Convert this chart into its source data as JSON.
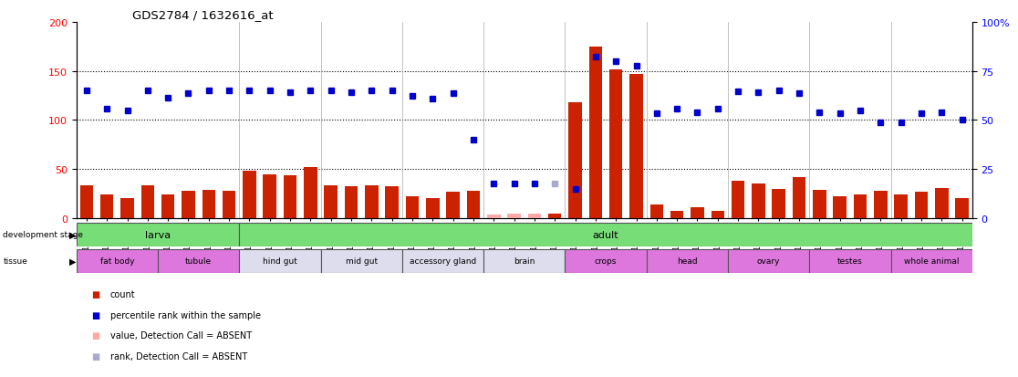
{
  "title": "GDS2784 / 1632616_at",
  "samples": [
    "GSM188092",
    "GSM188093",
    "GSM188094",
    "GSM188095",
    "GSM188100",
    "GSM188101",
    "GSM188102",
    "GSM188103",
    "GSM188072",
    "GSM188073",
    "GSM188074",
    "GSM188075",
    "GSM188076",
    "GSM188077",
    "GSM188078",
    "GSM188079",
    "GSM188080",
    "GSM188081",
    "GSM188082",
    "GSM188083",
    "GSM188084",
    "GSM188085",
    "GSM188086",
    "GSM188087",
    "GSM188088",
    "GSM188089",
    "GSM188090",
    "GSM188091",
    "GSM188096",
    "GSM188097",
    "GSM188098",
    "GSM188099",
    "GSM188104",
    "GSM188105",
    "GSM188106",
    "GSM188107",
    "GSM188108",
    "GSM188109",
    "GSM188110",
    "GSM188111",
    "GSM188112",
    "GSM188113",
    "GSM188114",
    "GSM188115"
  ],
  "counts": [
    34,
    24,
    21,
    34,
    24,
    28,
    29,
    28,
    48,
    45,
    44,
    52,
    34,
    33,
    34,
    33,
    22,
    21,
    27,
    28,
    4,
    5,
    5,
    5,
    118,
    175,
    152,
    147,
    14,
    8,
    11,
    8,
    38,
    35,
    30,
    42,
    29,
    22,
    24,
    28,
    24,
    27,
    31,
    21
  ],
  "counts_absent": [
    false,
    false,
    false,
    false,
    false,
    false,
    false,
    false,
    false,
    false,
    false,
    false,
    false,
    false,
    false,
    false,
    false,
    false,
    false,
    false,
    true,
    true,
    true,
    false,
    false,
    false,
    false,
    false,
    false,
    false,
    false,
    false,
    false,
    false,
    false,
    false,
    false,
    false,
    false,
    false,
    false,
    false,
    false,
    false
  ],
  "percentile_ranks_left": [
    130,
    112,
    110,
    130,
    123,
    127,
    130,
    130,
    130,
    130,
    128,
    130,
    130,
    128,
    130,
    130,
    125,
    122,
    127,
    80,
    35,
    35,
    35,
    35,
    30,
    165,
    160,
    155,
    107,
    112,
    108,
    112,
    129,
    128,
    130,
    127,
    108,
    107,
    110,
    98,
    98,
    107,
    108,
    100
  ],
  "ranks_absent": [
    false,
    false,
    false,
    false,
    false,
    false,
    false,
    false,
    false,
    false,
    false,
    false,
    false,
    false,
    false,
    false,
    false,
    false,
    false,
    false,
    false,
    false,
    false,
    true,
    false,
    false,
    false,
    false,
    false,
    false,
    false,
    false,
    false,
    false,
    false,
    false,
    false,
    false,
    false,
    false,
    false,
    false,
    false,
    false
  ],
  "bar_color": "#cc2200",
  "absent_bar_color": "#ffaaaa",
  "dot_color": "#0000cc",
  "absent_dot_color": "#aaaacc",
  "ylim_left": [
    0,
    200
  ],
  "yticks_left": [
    0,
    50,
    100,
    150,
    200
  ],
  "yticks_right_labels": [
    "0",
    "25",
    "50",
    "75",
    "100%"
  ],
  "yticks_right_pos": [
    0,
    50,
    100,
    150,
    200
  ],
  "hlines": [
    50,
    100,
    150
  ],
  "plot_bg": "#ffffff",
  "development_stage_groups": [
    {
      "label": "larva",
      "start": 0,
      "end": 8,
      "color": "#77dd77"
    },
    {
      "label": "adult",
      "start": 8,
      "end": 44,
      "color": "#77dd77"
    }
  ],
  "tissue_groups": [
    {
      "label": "fat body",
      "start": 0,
      "end": 4,
      "color": "#dd77dd"
    },
    {
      "label": "tubule",
      "start": 4,
      "end": 8,
      "color": "#dd77dd"
    },
    {
      "label": "hind gut",
      "start": 8,
      "end": 12,
      "color": "#ddddee"
    },
    {
      "label": "mid gut",
      "start": 12,
      "end": 16,
      "color": "#ddddee"
    },
    {
      "label": "accessory gland",
      "start": 16,
      "end": 20,
      "color": "#ddddee"
    },
    {
      "label": "brain",
      "start": 20,
      "end": 24,
      "color": "#ddddee"
    },
    {
      "label": "crops",
      "start": 24,
      "end": 28,
      "color": "#dd77dd"
    },
    {
      "label": "head",
      "start": 28,
      "end": 32,
      "color": "#dd77dd"
    },
    {
      "label": "ovary",
      "start": 32,
      "end": 36,
      "color": "#dd77dd"
    },
    {
      "label": "testes",
      "start": 36,
      "end": 40,
      "color": "#dd77dd"
    },
    {
      "label": "whole animal",
      "start": 40,
      "end": 44,
      "color": "#dd77dd"
    }
  ]
}
